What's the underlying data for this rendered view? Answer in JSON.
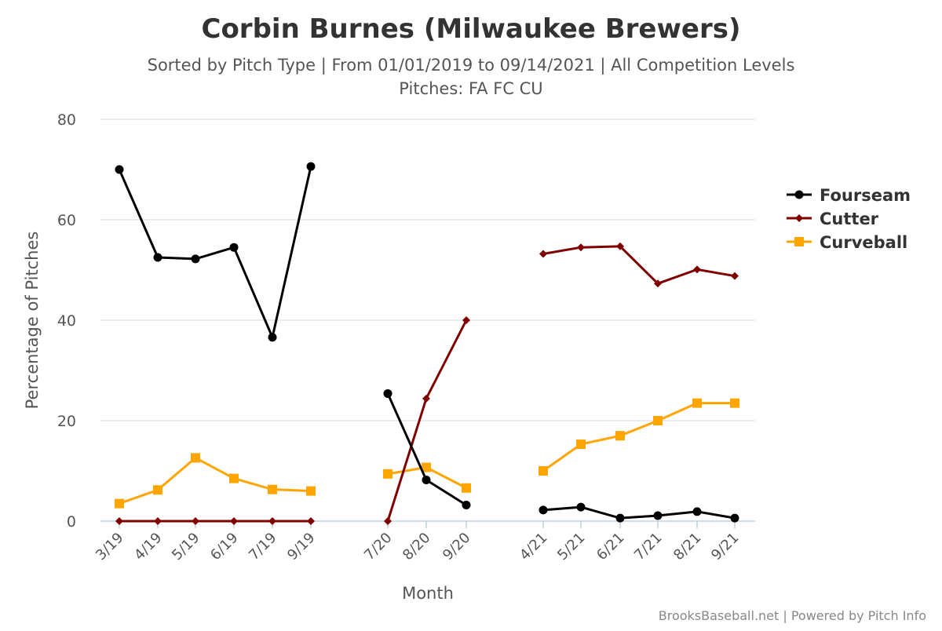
{
  "chart_data": {
    "type": "line",
    "title": "Corbin Burnes (Milwaukee Brewers)",
    "subtitle_line1": "Sorted by Pitch Type | From 01/01/2019 to 09/14/2021 | All Competition Levels",
    "subtitle_line2": "Pitches: FA FC CU",
    "xlabel": "Month",
    "ylabel": "Percentage of Pitches",
    "ylim": [
      0,
      80
    ],
    "yticks": [
      0,
      20,
      40,
      60,
      80
    ],
    "grid": true,
    "legend_position": "right",
    "categories": [
      "3/19",
      "4/19",
      "5/19",
      "6/19",
      "7/19",
      "9/19",
      "7/20",
      "8/20",
      "9/20",
      "4/21",
      "5/21",
      "6/21",
      "7/21",
      "8/21",
      "9/21"
    ],
    "segments": [
      [
        0,
        5
      ],
      [
        6,
        8
      ],
      [
        9,
        14
      ]
    ],
    "series": [
      {
        "name": "Fourseam",
        "color": "#000000",
        "marker": "circle",
        "values": [
          70.0,
          52.5,
          52.2,
          54.5,
          36.6,
          70.6,
          25.4,
          8.2,
          3.2,
          2.2,
          2.8,
          0.6,
          1.1,
          1.9,
          0.6
        ]
      },
      {
        "name": "Cutter",
        "color": "#800000",
        "marker": "diamond",
        "values": [
          0.0,
          0.0,
          0.0,
          0.0,
          0.0,
          0.0,
          0.0,
          24.4,
          40.0,
          53.2,
          54.5,
          54.7,
          47.3,
          50.1,
          48.8
        ]
      },
      {
        "name": "Curveball",
        "color": "#FFA500",
        "marker": "square",
        "values": [
          3.5,
          6.2,
          12.6,
          8.5,
          6.3,
          6.0,
          9.4,
          10.7,
          6.6,
          10.0,
          15.3,
          17.0,
          20.0,
          23.5,
          23.5
        ]
      }
    ],
    "credits": "BrooksBaseball.net | Powered by Pitch Info"
  }
}
